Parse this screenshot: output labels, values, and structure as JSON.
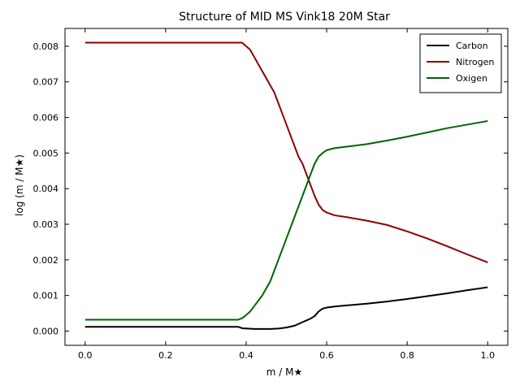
{
  "chart_data": {
    "type": "line",
    "title": "Structure of MID MS Vink18 20M Star",
    "xlabel": "m / M★",
    "ylabel": "log (m / M★)",
    "xlim": [
      -0.05,
      1.05
    ],
    "ylim": [
      -0.0004,
      0.0085
    ],
    "xticks": [
      "0.0",
      "0.2",
      "0.4",
      "0.6",
      "0.8",
      "1.0"
    ],
    "yticks": [
      "0.000",
      "0.001",
      "0.002",
      "0.003",
      "0.004",
      "0.005",
      "0.006",
      "0.007",
      "0.008"
    ],
    "legend_position": "top-right",
    "grid": false,
    "series": [
      {
        "name": "Carbon",
        "color": "#000000",
        "points": [
          [
            0.0,
            0.00012
          ],
          [
            0.2,
            0.00012
          ],
          [
            0.38,
            0.00012
          ],
          [
            0.39,
            8e-05
          ],
          [
            0.42,
            6e-05
          ],
          [
            0.44,
            6e-05
          ],
          [
            0.46,
            6e-05
          ],
          [
            0.48,
            7e-05
          ],
          [
            0.5,
            0.0001
          ],
          [
            0.52,
            0.00015
          ],
          [
            0.54,
            0.00025
          ],
          [
            0.56,
            0.00035
          ],
          [
            0.57,
            0.00042
          ],
          [
            0.58,
            0.00055
          ],
          [
            0.59,
            0.00063
          ],
          [
            0.6,
            0.00066
          ],
          [
            0.62,
            0.00069
          ],
          [
            0.65,
            0.00072
          ],
          [
            0.7,
            0.00077
          ],
          [
            0.75,
            0.00083
          ],
          [
            0.8,
            0.0009
          ],
          [
            0.85,
            0.00098
          ],
          [
            0.9,
            0.00106
          ],
          [
            0.95,
            0.00115
          ],
          [
            1.0,
            0.00123
          ]
        ]
      },
      {
        "name": "Nitrogen",
        "color": "#8b0000",
        "points": [
          [
            0.0,
            0.0081
          ],
          [
            0.2,
            0.0081
          ],
          [
            0.38,
            0.0081
          ],
          [
            0.39,
            0.0081
          ],
          [
            0.4,
            0.008
          ],
          [
            0.41,
            0.0079
          ],
          [
            0.42,
            0.0077
          ],
          [
            0.43,
            0.0075
          ],
          [
            0.44,
            0.0073
          ],
          [
            0.45,
            0.0071
          ],
          [
            0.46,
            0.0069
          ],
          [
            0.47,
            0.0067
          ],
          [
            0.48,
            0.0064
          ],
          [
            0.49,
            0.0061
          ],
          [
            0.5,
            0.0058
          ],
          [
            0.51,
            0.0055
          ],
          [
            0.52,
            0.0052
          ],
          [
            0.53,
            0.0049
          ],
          [
            0.54,
            0.0047
          ],
          [
            0.55,
            0.0044
          ],
          [
            0.56,
            0.0041
          ],
          [
            0.57,
            0.0038
          ],
          [
            0.58,
            0.00355
          ],
          [
            0.59,
            0.0034
          ],
          [
            0.6,
            0.00333
          ],
          [
            0.62,
            0.00325
          ],
          [
            0.65,
            0.0032
          ],
          [
            0.7,
            0.0031
          ],
          [
            0.75,
            0.00298
          ],
          [
            0.8,
            0.0028
          ],
          [
            0.85,
            0.0026
          ],
          [
            0.9,
            0.00238
          ],
          [
            0.95,
            0.00215
          ],
          [
            1.0,
            0.00193
          ]
        ]
      },
      {
        "name": "Oxigen",
        "color": "#006400",
        "points": [
          [
            0.0,
            0.00032
          ],
          [
            0.2,
            0.00032
          ],
          [
            0.38,
            0.00032
          ],
          [
            0.39,
            0.00036
          ],
          [
            0.4,
            0.00045
          ],
          [
            0.41,
            0.00055
          ],
          [
            0.42,
            0.0007
          ],
          [
            0.43,
            0.00085
          ],
          [
            0.44,
            0.001
          ],
          [
            0.45,
            0.0012
          ],
          [
            0.46,
            0.0014
          ],
          [
            0.47,
            0.0017
          ],
          [
            0.48,
            0.002
          ],
          [
            0.49,
            0.0023
          ],
          [
            0.5,
            0.0026
          ],
          [
            0.51,
            0.0029
          ],
          [
            0.52,
            0.0032
          ],
          [
            0.53,
            0.0035
          ],
          [
            0.54,
            0.0038
          ],
          [
            0.55,
            0.0041
          ],
          [
            0.56,
            0.0044
          ],
          [
            0.57,
            0.0047
          ],
          [
            0.58,
            0.0049
          ],
          [
            0.59,
            0.005
          ],
          [
            0.6,
            0.00508
          ],
          [
            0.62,
            0.00514
          ],
          [
            0.65,
            0.00518
          ],
          [
            0.7,
            0.00525
          ],
          [
            0.75,
            0.00535
          ],
          [
            0.8,
            0.00546
          ],
          [
            0.85,
            0.00558
          ],
          [
            0.9,
            0.0057
          ],
          [
            0.95,
            0.0058
          ],
          [
            1.0,
            0.0059
          ]
        ]
      }
    ]
  }
}
